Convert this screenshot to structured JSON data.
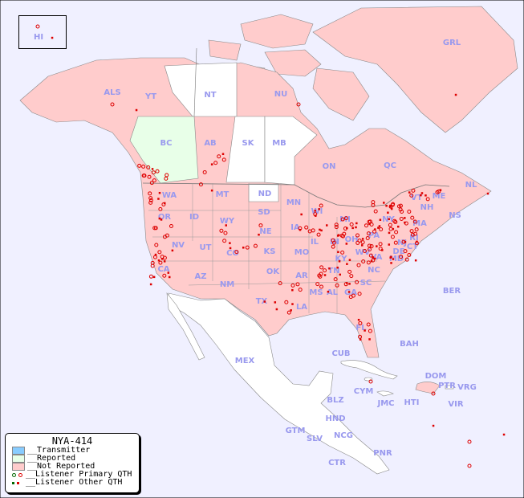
{
  "map_title": "NYA-414",
  "colors": {
    "ocean": "#f0f0ff",
    "transmitter": "#88ccff",
    "reported": "#e8ffe8",
    "not_reported": "#ffcccc",
    "unlisted": "#ffffff",
    "dot": "#dd0000",
    "label": "#9999ee"
  },
  "legend": {
    "title": "NYA-414",
    "items": [
      {
        "label": "__Transmitter",
        "color": "#88ccff"
      },
      {
        "label": "__Reported",
        "color": "#e8ffe8"
      },
      {
        "label": "__Not Reported",
        "color": "#ffcccc"
      },
      {
        "label": "__Listener Primary QTH",
        "marker": "circle"
      },
      {
        "label": "__Listener Other QTH",
        "marker": "square"
      }
    ]
  },
  "regions": [
    "HI",
    "ALS",
    "YT",
    "NT",
    "NU",
    "GRL",
    "BC",
    "AB",
    "SK",
    "MB",
    "ON",
    "QC",
    "NL",
    "NS",
    "WA",
    "MT",
    "ND",
    "MN",
    "WI",
    "MI",
    "VT",
    "NH",
    "ME",
    "MA",
    "RI",
    "CT",
    "NY",
    "PA",
    "NJ",
    "DE",
    "MD",
    "OR",
    "ID",
    "WY",
    "SD",
    "IA",
    "IL",
    "IN",
    "OH",
    "WV",
    "VA",
    "NE",
    "NV",
    "UT",
    "CO",
    "KS",
    "MO",
    "KY",
    "CA",
    "AZ",
    "NM",
    "OK",
    "AR",
    "TN",
    "NC",
    "SC",
    "MS",
    "AL",
    "GA",
    "TX",
    "LA",
    "FL",
    "BER",
    "BAH",
    "CUB",
    "MEX",
    "DOM",
    "PTR",
    "VRG",
    "CYM",
    "JMC",
    "HTI",
    "VIR",
    "BLZ",
    "HND",
    "GTM",
    "SLV",
    "NCG",
    "CTR",
    "PNR"
  ]
}
